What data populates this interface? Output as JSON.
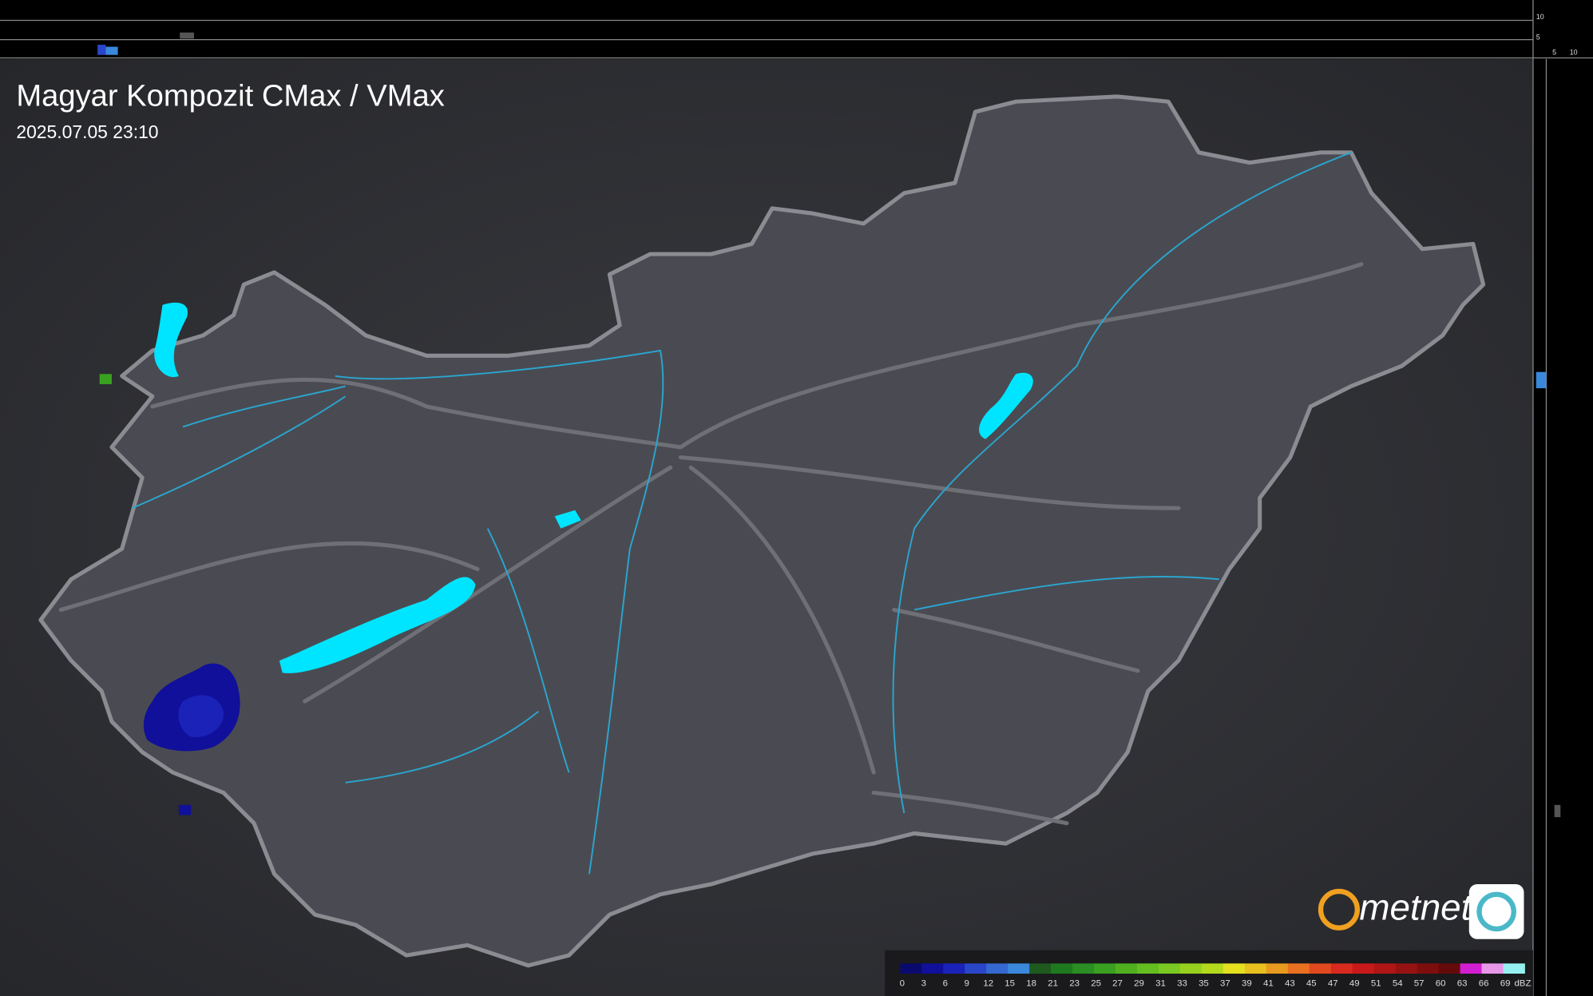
{
  "header": {
    "title": "Magyar Kompozit CMax / VMax",
    "timestamp": "2025.07.05 23:10"
  },
  "profile_axis": {
    "y_labels": [
      "10",
      "5"
    ],
    "x_labels": [
      "5",
      "10"
    ]
  },
  "logo": {
    "text": "metnet"
  },
  "legend": {
    "unit": "dBZ",
    "ticks": [
      0,
      3,
      6,
      9,
      12,
      15,
      18,
      21,
      23,
      25,
      27,
      29,
      31,
      33,
      35,
      37,
      39,
      41,
      43,
      45,
      47,
      49,
      51,
      54,
      57,
      60,
      63,
      66,
      69
    ],
    "colors": [
      "#0a0a6e",
      "#10109a",
      "#1a22b8",
      "#2a46c8",
      "#3568d0",
      "#3a88dc",
      "#1e5a1e",
      "#1f7a1f",
      "#2a8e22",
      "#3aa020",
      "#50b020",
      "#64be20",
      "#7ac822",
      "#96d01e",
      "#b4d81c",
      "#e4e020",
      "#e8c020",
      "#e89a20",
      "#e87020",
      "#e04a1e",
      "#d82a1e",
      "#c81a1a",
      "#b01616",
      "#961212",
      "#7e0e0e",
      "#640a0a",
      "#d21ed2",
      "#e896e8",
      "#96f0f0"
    ]
  }
}
